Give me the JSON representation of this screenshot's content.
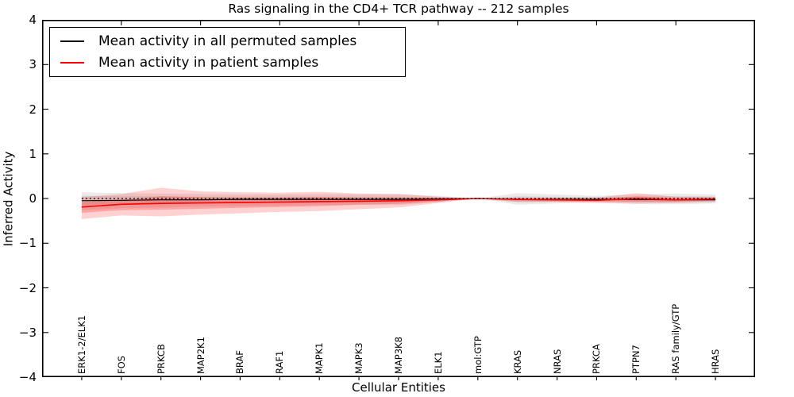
{
  "title": "Ras signaling in the CD4+ TCR pathway -- 212 samples",
  "chart_data": {
    "type": "line",
    "title": "Ras signaling in the CD4+ TCR pathway -- 212 samples",
    "xlabel": "Cellular Entities",
    "ylabel": "Inferred Activity",
    "ylim": [
      -4,
      4
    ],
    "ytick_labels": [
      "4",
      "3",
      "2",
      "1",
      "0",
      "−1",
      "−2",
      "−3",
      "−4"
    ],
    "ytick_values": [
      4,
      3,
      2,
      1,
      0,
      -1,
      -2,
      -3,
      -4
    ],
    "grid": false,
    "zero_line": {
      "style": "dashed",
      "color": "#000000",
      "value": 0
    },
    "categories": [
      "ERK1-2/ELK1",
      "FOS",
      "PRKCB",
      "MAP2K1",
      "BRAF",
      "RAF1",
      "MAPK1",
      "MAPK3",
      "MAP3K8",
      "ELK1",
      "mol:GTP",
      "KRAS",
      "NRAS",
      "PRKCA",
      "PTPN7",
      "RAS family/GTP",
      "HRAS"
    ],
    "series": [
      {
        "name": "Mean activity in all permuted samples",
        "color": "#000000",
        "values": [
          -0.05,
          -0.04,
          -0.03,
          -0.03,
          -0.02,
          -0.02,
          -0.02,
          -0.02,
          -0.02,
          -0.01,
          0.0,
          -0.02,
          -0.02,
          -0.02,
          -0.02,
          -0.03,
          -0.03
        ]
      },
      {
        "name": "Mean activity in patient samples",
        "color": "#ff0000",
        "values": [
          -0.19,
          -0.13,
          -0.11,
          -0.1,
          -0.09,
          -0.08,
          -0.07,
          -0.06,
          -0.05,
          -0.03,
          0.0,
          -0.02,
          -0.03,
          -0.04,
          0.0,
          -0.03,
          -0.01
        ]
      }
    ],
    "bands": [
      {
        "name": "permuted-std-band",
        "color": "rgba(0,0,0,0.08)",
        "upper": [
          0.14,
          0.12,
          0.11,
          0.1,
          0.09,
          0.09,
          0.1,
          0.09,
          0.1,
          0.06,
          0.0,
          0.12,
          0.09,
          0.06,
          0.09,
          0.11,
          0.09
        ],
        "lower": [
          -0.26,
          -0.22,
          -0.2,
          -0.18,
          -0.17,
          -0.16,
          -0.15,
          -0.14,
          -0.15,
          -0.08,
          0.0,
          -0.14,
          -0.11,
          -0.08,
          -0.11,
          -0.13,
          -0.11
        ]
      },
      {
        "name": "permuted-inner-band",
        "color": "rgba(0,0,0,0.08)",
        "upper": [
          0.06,
          0.05,
          0.05,
          0.04,
          0.04,
          0.04,
          0.04,
          0.04,
          0.04,
          0.03,
          0.0,
          0.05,
          0.04,
          0.03,
          0.04,
          0.05,
          0.04
        ],
        "lower": [
          -0.15,
          -0.13,
          -0.12,
          -0.11,
          -0.1,
          -0.1,
          -0.09,
          -0.09,
          -0.09,
          -0.05,
          0.0,
          -0.08,
          -0.07,
          -0.05,
          -0.07,
          -0.08,
          -0.07
        ]
      },
      {
        "name": "patient-std-band",
        "color": "rgba(255,0,0,0.18)",
        "upper": [
          0.03,
          0.1,
          0.24,
          0.16,
          0.14,
          0.13,
          0.15,
          0.11,
          0.1,
          0.04,
          0.0,
          0.02,
          0.02,
          0.02,
          0.12,
          0.04,
          0.04
        ],
        "lower": [
          -0.46,
          -0.38,
          -0.4,
          -0.36,
          -0.33,
          -0.3,
          -0.28,
          -0.24,
          -0.2,
          -0.1,
          0.0,
          -0.08,
          -0.08,
          -0.1,
          -0.12,
          -0.1,
          -0.08
        ]
      },
      {
        "name": "patient-inner-band",
        "color": "rgba(255,0,0,0.22)",
        "upper": [
          -0.08,
          -0.03,
          0.05,
          0.03,
          0.02,
          0.02,
          0.03,
          0.02,
          0.02,
          0.01,
          0.0,
          0.0,
          0.0,
          -0.01,
          0.05,
          0.01,
          0.01
        ],
        "lower": [
          -0.32,
          -0.26,
          -0.25,
          -0.23,
          -0.21,
          -0.19,
          -0.17,
          -0.14,
          -0.12,
          -0.07,
          0.0,
          -0.05,
          -0.06,
          -0.07,
          -0.07,
          -0.07,
          -0.04
        ]
      }
    ],
    "legend": {
      "position": "upper left",
      "entries": [
        {
          "label": "Mean activity in all permuted samples",
          "color": "#000000"
        },
        {
          "label": "Mean activity in patient samples",
          "color": "#ff0000"
        }
      ]
    }
  }
}
